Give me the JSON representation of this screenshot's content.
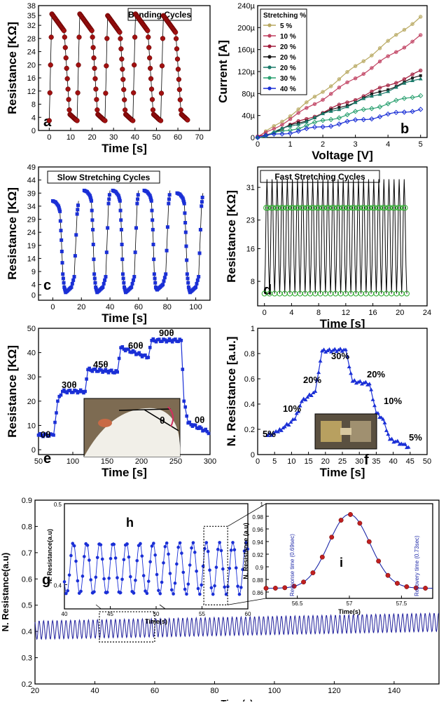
{
  "colors": {
    "dark_red": "#a01010",
    "blue": "#1a2fd6",
    "green": "#2aa82a",
    "navy": "#1f1f9c",
    "pink": "#d03060",
    "panel_i_red": "#c02020",
    "callout_blue": "#1d28a8"
  },
  "chart_data": [
    {
      "id": "a",
      "type": "line",
      "panel_letter": "a",
      "title": "Bending Cycles",
      "xlabel": "Time [s]",
      "ylabel": "Resistance [KΩ]",
      "xlim": [
        -5,
        75
      ],
      "ylim": [
        0,
        38
      ],
      "xticks": [
        0,
        10,
        20,
        30,
        40,
        50,
        60,
        70
      ],
      "yticks": [
        0,
        4,
        8,
        12,
        16,
        20,
        24,
        28,
        32,
        35,
        38
      ],
      "cycles": [
        {
          "start": 0,
          "peak": 35.5,
          "low": 3
        },
        {
          "start": 13,
          "peak": 35.5,
          "low": 3
        },
        {
          "start": 26,
          "peak": 35,
          "low": 3
        },
        {
          "start": 39,
          "peak": 35.5,
          "low": 3
        },
        {
          "start": 52,
          "peak": 35,
          "low": 3
        }
      ]
    },
    {
      "id": "b",
      "type": "line",
      "panel_letter": "b",
      "legend_title": "Stretching %",
      "xlabel": "Voltage [V]",
      "ylabel": "Current [A]",
      "xlim": [
        0,
        5.2
      ],
      "ylim": [
        0,
        0.00024
      ],
      "xticks": [
        0,
        1,
        2,
        3,
        4,
        5
      ],
      "ytick_labels": [
        "0",
        "40µ",
        "80µ",
        "120µ",
        "160µ",
        "200µ",
        "240µ"
      ],
      "series": [
        {
          "name": "5 %",
          "color": "#b8a860",
          "marker": "circle",
          "end": 0.00022
        },
        {
          "name": "10 %",
          "color": "#c04060",
          "marker": "star",
          "end": 0.000185
        },
        {
          "name": "20 %",
          "color": "#a01a3a",
          "marker": "circle",
          "end": 0.00012
        },
        {
          "name": "20 %",
          "color": "#1a1a1a",
          "marker": "square",
          "end": 0.000112
        },
        {
          "name": "20 %",
          "color": "#1a7a6a",
          "marker": "triangle",
          "end": 0.000108
        },
        {
          "name": "30 %",
          "color": "#2aa070",
          "marker": "diamond",
          "end": 7.8e-05
        },
        {
          "name": "40 %",
          "color": "#1a2fd6",
          "marker": "diamond",
          "end": 5.2e-05
        }
      ]
    },
    {
      "id": "c",
      "type": "line",
      "panel_letter": "c",
      "title": "Slow Stretching Cycles",
      "xlabel": "Time [s]",
      "ylabel": "Resistance [KΩ]",
      "xlim": [
        -10,
        110
      ],
      "ylim": [
        -2,
        49
      ],
      "xticks": [
        0,
        20,
        40,
        60,
        80,
        100
      ],
      "yticks": [
        0,
        4,
        9,
        14,
        19,
        24,
        29,
        34,
        39,
        44,
        49
      ],
      "cycles": [
        {
          "start": 0,
          "high": 36,
          "low": 1
        },
        {
          "start": 22,
          "high": 40,
          "low": 1
        },
        {
          "start": 42,
          "high": 40,
          "low": 1
        },
        {
          "start": 64,
          "high": 40,
          "low": 2
        },
        {
          "start": 87,
          "high": 39,
          "low": 1
        }
      ]
    },
    {
      "id": "d",
      "type": "line",
      "panel_letter": "d",
      "title": "Fast Stretching Cycles",
      "xlabel": "Time [s]",
      "ylabel": "Resistance [KΩ]",
      "xlim": [
        -1,
        24
      ],
      "ylim": [
        2,
        36
      ],
      "xticks": [
        0,
        4,
        8,
        12,
        16,
        20,
        24
      ],
      "yticks": [
        8,
        16,
        23,
        31
      ],
      "period_s": 0.75,
      "peak": 33,
      "low": 5
    },
    {
      "id": "e",
      "type": "line",
      "panel_letter": "e",
      "xlabel": "Time [s]",
      "ylabel": "Resistance [KΩ]",
      "xlim": [
        50,
        300
      ],
      "ylim": [
        -2,
        50
      ],
      "xticks": [
        50,
        100,
        150,
        200,
        250,
        300
      ],
      "yticks": [
        0,
        10,
        20,
        30,
        40,
        50
      ],
      "annotations": [
        "0θ",
        "30θ",
        "45θ",
        "60θ",
        "90θ",
        "0θ"
      ],
      "steps": [
        [
          50,
          6
        ],
        [
          72,
          6
        ],
        [
          78,
          20
        ],
        [
          85,
          24
        ],
        [
          118,
          24
        ],
        [
          122,
          33
        ],
        [
          165,
          32
        ],
        [
          170,
          42
        ],
        [
          210,
          38
        ],
        [
          215,
          45
        ],
        [
          258,
          45
        ],
        [
          262,
          20
        ],
        [
          268,
          11
        ],
        [
          300,
          7
        ]
      ],
      "inset_label": "θ"
    },
    {
      "id": "f",
      "type": "line",
      "panel_letter": "f",
      "xlabel": "Time [s]",
      "ylabel": "N. Resistance [a.u.]",
      "xlim": [
        0,
        50
      ],
      "ylim": [
        0,
        1.0
      ],
      "xticks": [
        0,
        5,
        10,
        15,
        20,
        25,
        30,
        35,
        40,
        45,
        50
      ],
      "yticks": [
        0.0,
        0.2,
        0.4,
        0.6,
        0.8,
        1.0
      ],
      "annotations": [
        "5%",
        "10%",
        "20%",
        "30%",
        "20%",
        "10%",
        "5%"
      ],
      "steps": [
        [
          3,
          0.15
        ],
        [
          6,
          0.18
        ],
        [
          8,
          0.22
        ],
        [
          11,
          0.28
        ],
        [
          13,
          0.42
        ],
        [
          17,
          0.5
        ],
        [
          19,
          0.82
        ],
        [
          26,
          0.83
        ],
        [
          28,
          0.58
        ],
        [
          33,
          0.56
        ],
        [
          35,
          0.33
        ],
        [
          37,
          0.28
        ],
        [
          39,
          0.12
        ],
        [
          43,
          0.08
        ],
        [
          45,
          0.05
        ]
      ]
    },
    {
      "id": "g",
      "type": "line",
      "panel_letter": "g",
      "xlabel": "Time(s)",
      "ylabel": "N. Resistance(a.u)",
      "xlim": [
        20,
        155
      ],
      "ylim": [
        0.2,
        0.9
      ],
      "xticks": [
        20,
        40,
        60,
        80,
        100,
        120,
        140
      ],
      "yticks": [
        0.2,
        0.3,
        0.4,
        0.5,
        0.6,
        0.7,
        0.8,
        0.9
      ],
      "period_s": 1.5,
      "base_start": 0.405,
      "base_end": 0.435,
      "amp": 0.035
    },
    {
      "id": "h",
      "type": "line",
      "panel_letter": "h",
      "xlabel": "Time(s)",
      "ylabel": "N. Resistance(a.u)",
      "xlim": [
        40,
        60
      ],
      "ylim": [
        0.37,
        0.5
      ],
      "xticks": [
        40,
        45,
        50,
        55,
        60
      ],
      "yticks": [
        0.4,
        0.5
      ],
      "period_s": 1.45,
      "center": 0.42,
      "amp": 0.032
    },
    {
      "id": "i",
      "type": "line",
      "panel_letter": "i",
      "xlabel": "Time(s)",
      "ylabel": "N. Resistance (a.u)",
      "xlim": [
        56.2,
        57.8
      ],
      "ylim": [
        0.85,
        1.0
      ],
      "xticks": [
        56.5,
        57.0,
        57.5
      ],
      "yticks": [
        0.86,
        0.88,
        0.9,
        0.92,
        0.94,
        0.96,
        0.98,
        1.0
      ],
      "annotations": [
        "Response time (0.69sec)",
        "Recovery time (0.73sec)"
      ],
      "peak_t": 57.0,
      "peak": 0.983,
      "base": 0.866
    }
  ]
}
